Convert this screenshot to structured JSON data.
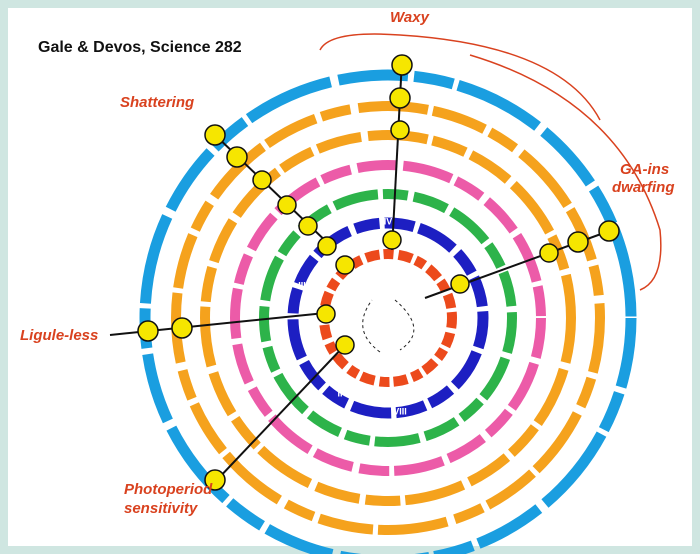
{
  "header": {
    "title": "Gale & Devos, Science 282"
  },
  "traits": {
    "waxy": "Waxy",
    "shattering": "Shattering",
    "ga_line1": "GA-ins",
    "ga_line2": "dwarfing",
    "ligule": "Ligule-less",
    "photo_line1": "Photoperiod",
    "photo_line2": "sensitivity"
  },
  "rings": {
    "labels": [
      "IV",
      "VI",
      "VIII",
      "II",
      "III"
    ]
  }
}
